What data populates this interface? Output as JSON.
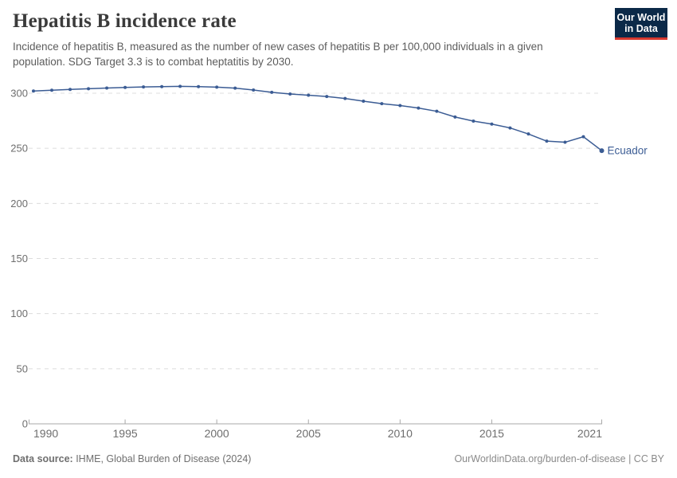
{
  "header": {
    "title": "Hepatitis B incidence rate",
    "subtitle": "Incidence of hepatitis B, measured as the number of new cases of hepatitis B per 100,000 individuals in a given population. SDG Target 3.3 is to combat heptatitis by 2030.",
    "logo": {
      "line1": "Our World",
      "line2": "in Data"
    }
  },
  "chart_data": {
    "type": "line",
    "title": "Hepatitis B incidence rate",
    "xlabel": "",
    "ylabel": "",
    "xlim": [
      1990,
      2021
    ],
    "ylim": [
      0,
      300
    ],
    "x_ticks": [
      1990,
      1995,
      2000,
      2005,
      2010,
      2015,
      2021
    ],
    "y_ticks": [
      0,
      50,
      100,
      150,
      200,
      250,
      300
    ],
    "grid": "horizontal-dashed",
    "legend_position": "end-of-line-label",
    "series": [
      {
        "name": "Ecuador",
        "color": "#3b5c94",
        "x": [
          1990,
          1991,
          1992,
          1993,
          1994,
          1995,
          1996,
          1997,
          1998,
          1999,
          2000,
          2001,
          2002,
          2003,
          2004,
          2005,
          2006,
          2007,
          2008,
          2009,
          2010,
          2011,
          2012,
          2013,
          2014,
          2015,
          2016,
          2017,
          2018,
          2019,
          2020,
          2021
        ],
        "values": [
          302.0,
          302.7,
          303.4,
          304.1,
          304.7,
          305.2,
          305.7,
          306.0,
          306.2,
          306.0,
          305.5,
          304.6,
          302.9,
          300.8,
          299.3,
          298.2,
          297.0,
          295.2,
          292.8,
          290.5,
          288.8,
          286.5,
          283.6,
          278.4,
          274.7,
          272.0,
          268.5,
          263.0,
          256.5,
          255.5,
          260.5,
          247.9
        ]
      }
    ]
  },
  "colors": {
    "grid": "#dcdcdc",
    "axis": "#a8a8a8",
    "tick_label": "#6e6e6e",
    "series_blue": "#3b5c94",
    "logo_bg": "#0b2948",
    "logo_accent": "#d7382e"
  },
  "footer": {
    "source_label": "Data source:",
    "source_text": " IHME, Global Burden of Disease (2024)",
    "rights": "OurWorldinData.org/burden-of-disease | CC BY"
  }
}
